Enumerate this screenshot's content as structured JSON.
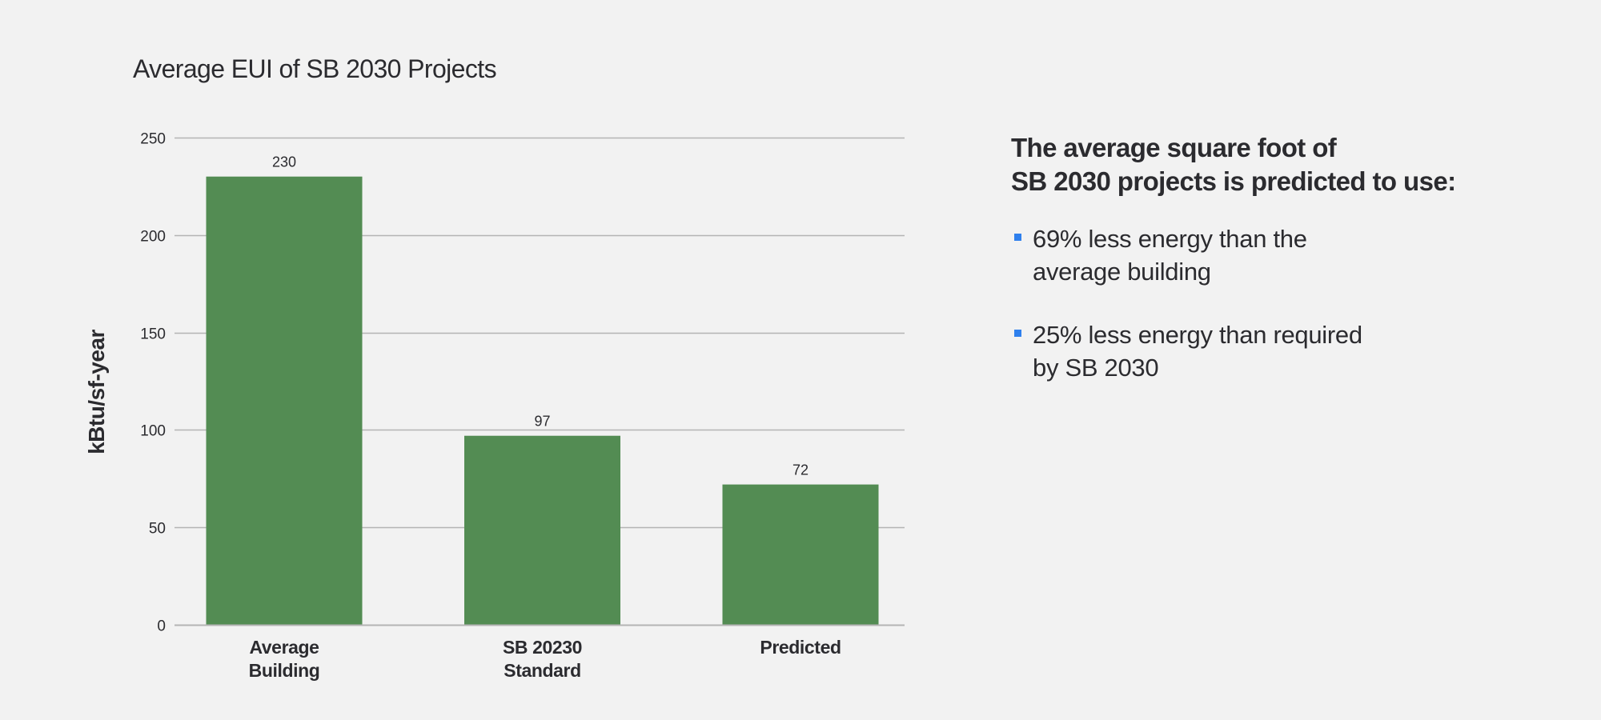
{
  "colors": {
    "background": "#f2f2f2",
    "bar": "#538c53",
    "grid": "#b4b4b4",
    "text": "#2b2b2f",
    "bullet": "#2f80ed"
  },
  "chart_data": {
    "type": "bar",
    "title": "Average EUI of SB 2030 Projects",
    "xlabel": "",
    "ylabel": "kBtu/sf-year",
    "ylim": [
      0,
      250
    ],
    "yticks": [
      0,
      50,
      100,
      150,
      200,
      250
    ],
    "grid": true,
    "categories": [
      {
        "line1": "Average",
        "line2": "Building"
      },
      {
        "line1": "SB 20230",
        "line2": "Standard"
      },
      {
        "line1": "Predicted",
        "line2": ""
      }
    ],
    "values": [
      230,
      97,
      72
    ],
    "data_labels": [
      "230",
      "97",
      "72"
    ]
  },
  "summary": {
    "heading_lines": [
      "The average square foot of",
      "SB 2030 projects is predicted to use:"
    ],
    "bullets": [
      {
        "lines": [
          "69% less energy than the",
          "average building"
        ]
      },
      {
        "lines": [
          "25% less energy than required",
          "by SB 2030"
        ]
      }
    ]
  }
}
